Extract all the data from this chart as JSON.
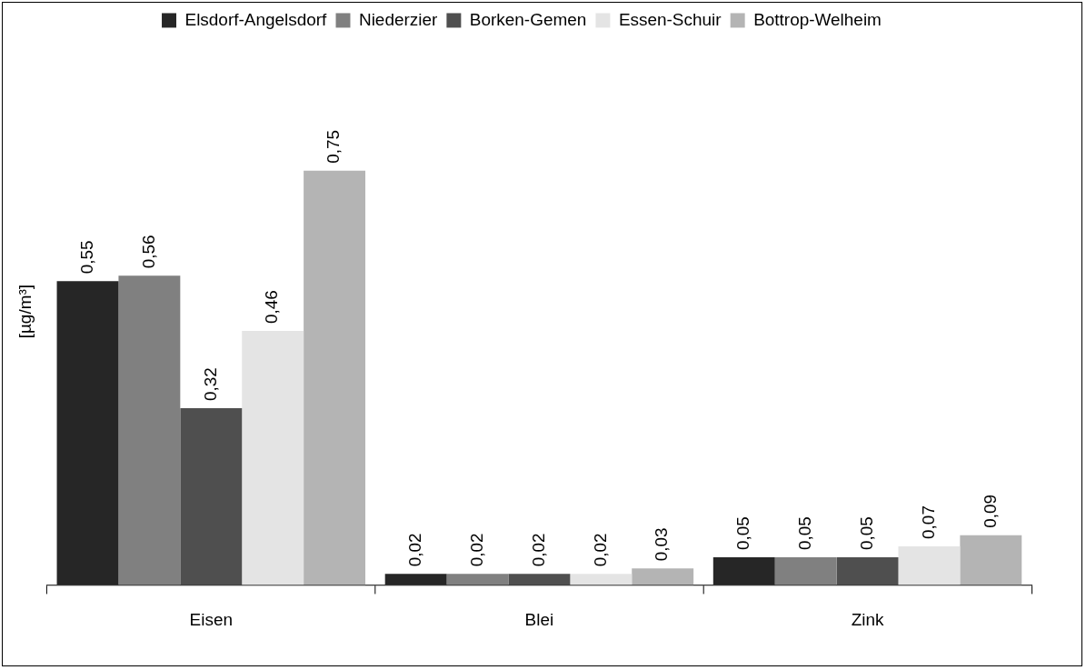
{
  "chart_data": {
    "type": "bar",
    "ylabel": "[µg/m³]",
    "categories": [
      "Eisen",
      "Blei",
      "Zink"
    ],
    "legend": "top",
    "grid": false,
    "series": [
      {
        "name": "Elsdorf-Angelsdorf",
        "color": "#262626",
        "values": [
          0.55,
          0.02,
          0.05
        ],
        "value_labels": [
          "0,55",
          "0,02",
          "0,05"
        ]
      },
      {
        "name": "Niederzier",
        "color": "#808080",
        "values": [
          0.56,
          0.02,
          0.05
        ],
        "value_labels": [
          "0,56",
          "0,02",
          "0,05"
        ]
      },
      {
        "name": "Borken-Gemen",
        "color": "#4f4f4f",
        "values": [
          0.32,
          0.02,
          0.05
        ],
        "value_labels": [
          "0,32",
          "0,02",
          "0,05"
        ]
      },
      {
        "name": "Essen-Schuir",
        "color": "#e4e4e4",
        "values": [
          0.46,
          0.02,
          0.07
        ],
        "value_labels": [
          "0,46",
          "0,02",
          "0,07"
        ]
      },
      {
        "name": "Bottrop-Welheim",
        "color": "#b4b4b4",
        "values": [
          0.75,
          0.03,
          0.09
        ],
        "value_labels": [
          "0,75",
          "0,03",
          "0,09"
        ]
      }
    ]
  }
}
